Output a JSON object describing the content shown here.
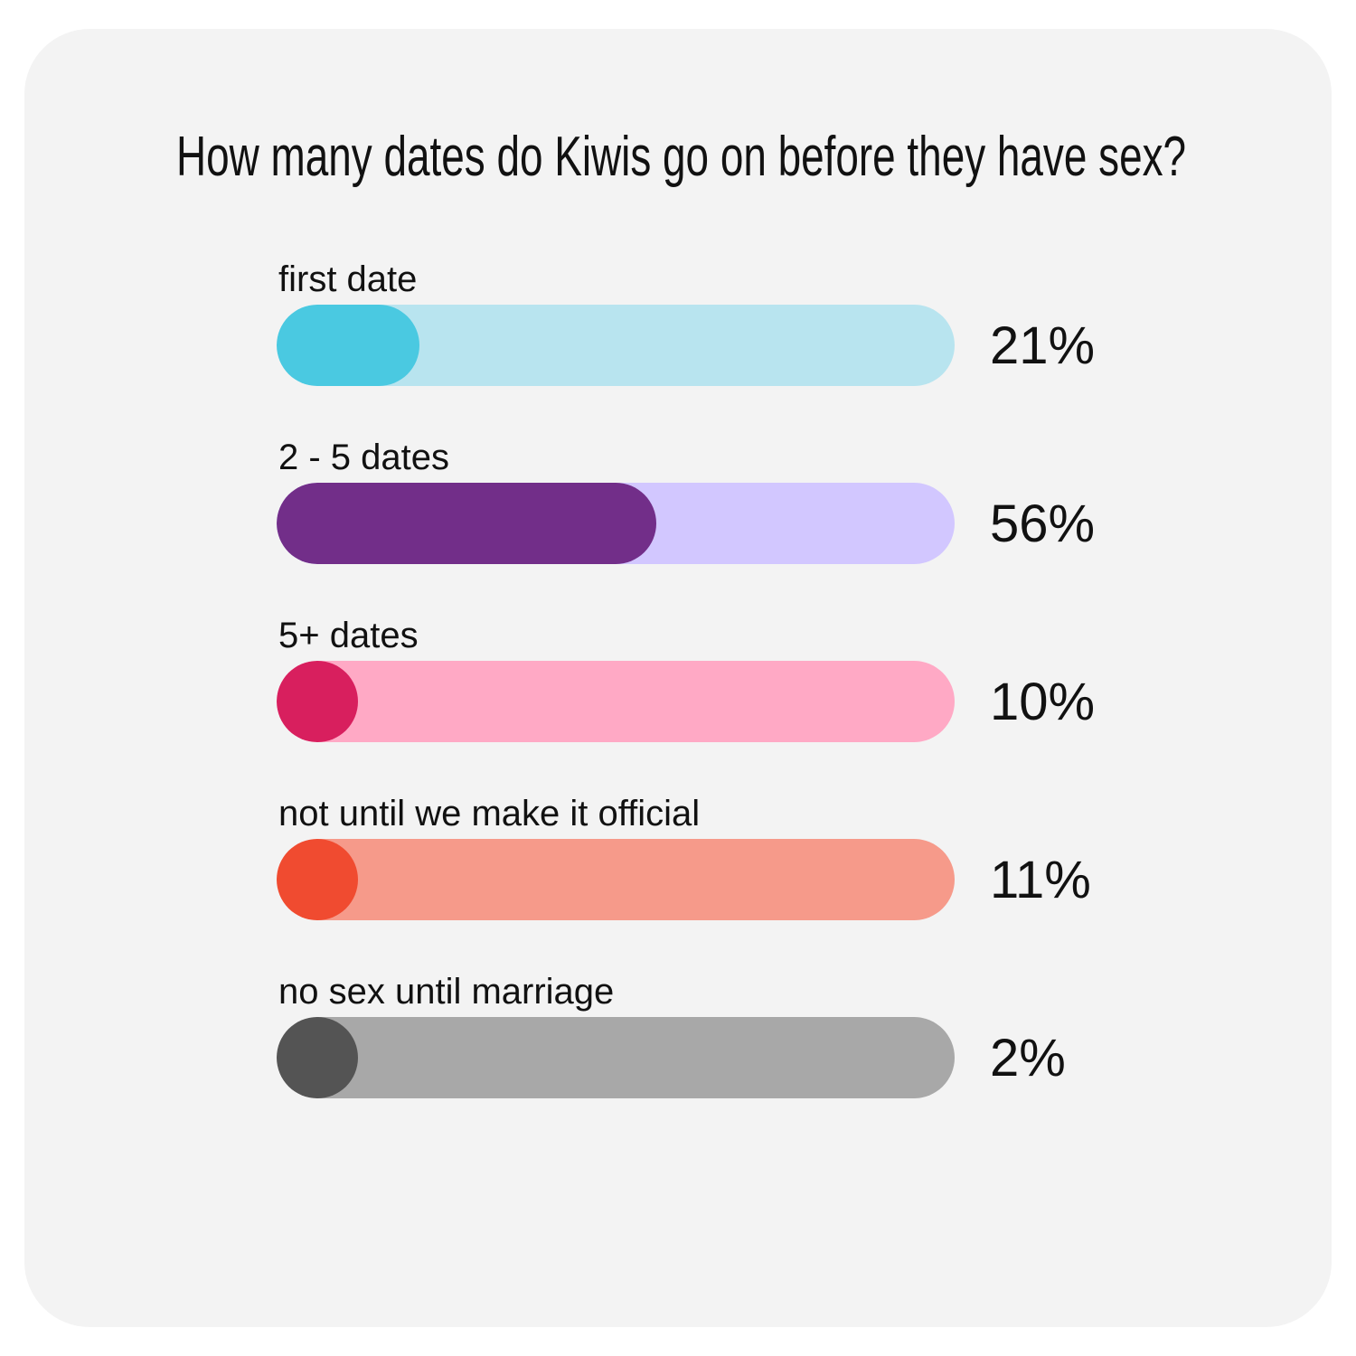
{
  "chart_data": {
    "type": "bar",
    "orientation": "horizontal",
    "title": "How many dates do Kiwis go on before they have sex?",
    "categories": [
      "first date",
      "2 - 5 dates",
      "5+ dates",
      "not until we make it official",
      "no sex until marriage"
    ],
    "values": [
      21,
      56,
      10,
      11,
      2
    ],
    "value_labels": [
      "21%",
      "56%",
      "10%",
      "11%",
      "2%"
    ],
    "xlim": [
      0,
      100
    ],
    "unit": "%",
    "grid": false,
    "legend": "none",
    "colors": {
      "fill": [
        "#4ac9e1",
        "#722e89",
        "#d81f5e",
        "#f04b30",
        "#545454"
      ],
      "track": [
        "#b8e4ef",
        "#d2c7ff",
        "#ffa9c5",
        "#f69a8a",
        "#a8a8a8"
      ]
    }
  }
}
